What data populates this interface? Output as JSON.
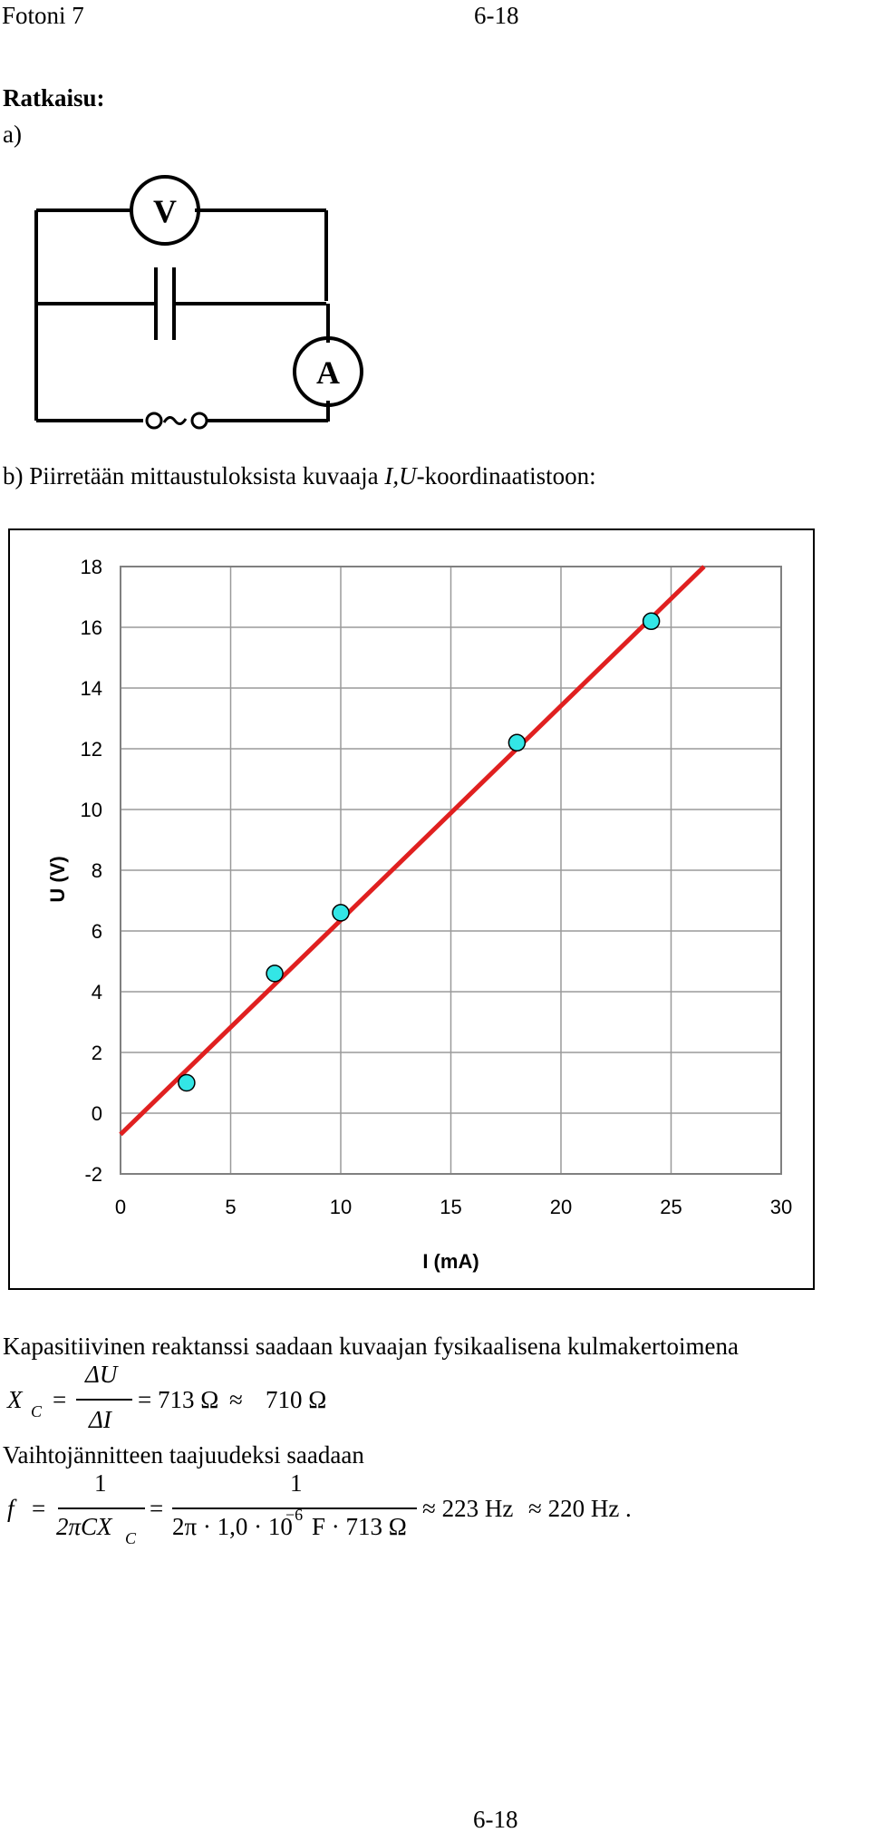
{
  "header": {
    "left": "Fotoni 7",
    "right": "6-18"
  },
  "solution_heading": "Ratkaisu:",
  "part_a_label": "a)",
  "circuit": {
    "voltmeter_label": "V",
    "ammeter_label": "A",
    "source_symbol": "~"
  },
  "part_b": {
    "prefix": "b) Piirretään mittaustuloksista kuvaaja ",
    "axes_italic": "I,U",
    "suffix": "-koordinaatistoon:"
  },
  "chart_data": {
    "type": "scatter",
    "xlabel": "I (mA)",
    "ylabel": "U (V)",
    "xlim": [
      0,
      30
    ],
    "ylim": [
      -2,
      18
    ],
    "xticks": [
      0,
      5,
      10,
      15,
      20,
      25,
      30
    ],
    "yticks": [
      -2,
      0,
      2,
      4,
      6,
      8,
      10,
      12,
      14,
      16,
      18
    ],
    "grid": true,
    "points": [
      {
        "x": 3.0,
        "y": 1.0
      },
      {
        "x": 7.0,
        "y": 4.6
      },
      {
        "x": 10.0,
        "y": 6.6
      },
      {
        "x": 18.0,
        "y": 12.2
      },
      {
        "x": 24.1,
        "y": 16.2
      }
    ],
    "fit_line": {
      "x": [
        0,
        26.5
      ],
      "y": [
        -0.7,
        18.0
      ],
      "color": "#e02020"
    },
    "point_color": "#33e6e6"
  },
  "text1": "Kapasitiivinen reaktanssi saadaan kuvaajan fysikaalisena kulmakertoimena",
  "eq1": {
    "lhs": "X",
    "lhs_sub": "C",
    "num": "ΔU",
    "den": "ΔI",
    "result": "= 713 Ω",
    "approx": "≈",
    "approx_value": "710 Ω"
  },
  "text2": "Vaihtojännitteen taajuudeksi saadaan",
  "eq2": {
    "lhs": "f",
    "frac1_num": "1",
    "frac1_den": "2πCX",
    "frac1_den_sub": "C",
    "frac2_num": "1",
    "frac2_den_a": "2π · 1,0 · 10",
    "frac2_den_exp": "−6",
    "frac2_den_b": "F · 713 Ω",
    "result1": "≈ 223 Hz",
    "result2": "≈ 220 Hz ."
  },
  "footer": "6-18"
}
